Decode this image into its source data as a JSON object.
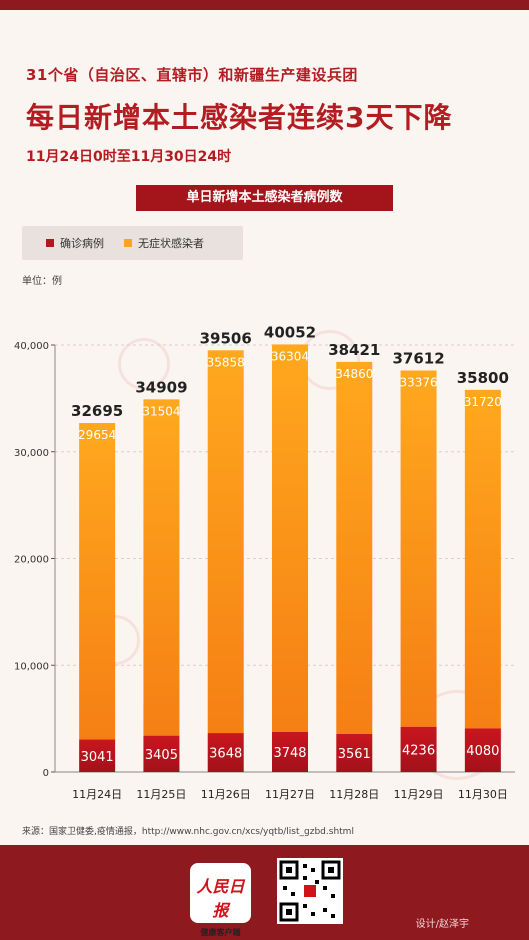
{
  "header": {
    "line1": "31个省（自治区、直辖市）和新疆生产建设兵团",
    "line2": "每日新增本土感染者连续3天下降",
    "line3": "11月24日0时至11月30日24时"
  },
  "chart_badge": "单日新增本土感染者病例数",
  "unit": "单位：例",
  "source": "来源：国家卫健委,疫情通报，http://www.nhc.gov.cn/xcs/yqtb/list_gzbd.shtml",
  "footer": {
    "logo_text": "人民日报",
    "logo_sub": "健康客户端",
    "credit": "设计/赵泽宇"
  },
  "colors": {
    "confirmed": "#b8141c",
    "asymptomatic": "#ffa31c",
    "asymptomatic_dark": "#f07a12",
    "brand": "#8e1a1f"
  },
  "chart_data": {
    "type": "bar",
    "stacked": true,
    "categories": [
      "11月24日",
      "11月25日",
      "11月26日",
      "11月27日",
      "11月28日",
      "11月29日",
      "11月30日"
    ],
    "series": [
      {
        "name": "确诊病例",
        "values": [
          3041,
          3405,
          3648,
          3748,
          3561,
          4236,
          4080
        ]
      },
      {
        "name": "无症状感染者",
        "values": [
          29654,
          31504,
          35858,
          36304,
          34860,
          33376,
          31720
        ]
      }
    ],
    "totals": [
      32695,
      34909,
      39506,
      40052,
      38421,
      37612,
      35800
    ],
    "ylim": [
      0,
      40000
    ],
    "yticks": [
      "0",
      "10,000",
      "20,000",
      "30,000",
      "40,000"
    ],
    "ytick_values": [
      0,
      10000,
      20000,
      30000,
      40000
    ],
    "grid": true,
    "legend_position": "top-left"
  }
}
